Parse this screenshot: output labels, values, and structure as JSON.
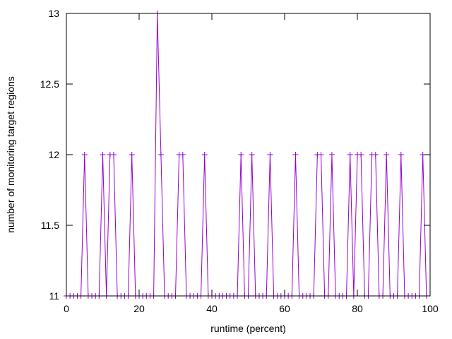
{
  "chart_data": {
    "type": "line",
    "title": "",
    "xlabel": "runtime (percent)",
    "ylabel": "number of monitoring target regions",
    "xlim": [
      0,
      100
    ],
    "ylim": [
      11,
      13
    ],
    "xticks": [
      0,
      20,
      40,
      60,
      80,
      100
    ],
    "yticks": [
      11,
      11.5,
      12,
      12.5,
      13
    ],
    "xtick_labels": [
      "0",
      "20",
      "40",
      "60",
      "80",
      "100"
    ],
    "ytick_labels": [
      "11",
      "11.5",
      "12",
      "12.5",
      "13"
    ],
    "grid": false,
    "legend": "none",
    "marker": "plus",
    "series": [
      {
        "color": "#9400d3",
        "x": [
          0,
          1,
          2,
          3,
          4,
          5,
          6,
          7,
          8,
          9,
          10,
          11,
          12,
          13,
          14,
          15,
          16,
          17,
          18,
          19,
          20,
          21,
          22,
          23,
          24,
          25,
          26,
          27,
          28,
          29,
          30,
          31,
          32,
          33,
          34,
          35,
          36,
          37,
          38,
          39,
          40,
          41,
          42,
          43,
          44,
          45,
          46,
          47,
          48,
          49,
          50,
          51,
          52,
          53,
          54,
          55,
          56,
          57,
          58,
          59,
          60,
          61,
          62,
          63,
          64,
          65,
          66,
          67,
          68,
          69,
          70,
          71,
          72,
          73,
          74,
          75,
          76,
          77,
          78,
          79,
          80,
          81,
          82,
          83,
          84,
          85,
          86,
          87,
          88,
          89,
          90,
          91,
          92,
          93,
          94,
          95,
          96,
          97,
          98,
          99
        ],
        "y": [
          11,
          11,
          11,
          11,
          11,
          12,
          11,
          11,
          11,
          11,
          12,
          11,
          12,
          12,
          11,
          11,
          11,
          11,
          12,
          11,
          11,
          11,
          11,
          11,
          11,
          13,
          12,
          11,
          11,
          11,
          11,
          12,
          12,
          11,
          11,
          11,
          11,
          11,
          12,
          11,
          11,
          11,
          11,
          11,
          11,
          11,
          11,
          11,
          12,
          11,
          11,
          12,
          11,
          11,
          11,
          11,
          12,
          11,
          11,
          11,
          11,
          11,
          11,
          12,
          11,
          11,
          11,
          11,
          11,
          12,
          12,
          11,
          11,
          12,
          11,
          11,
          11,
          11,
          12,
          11,
          12,
          12,
          11,
          11,
          12,
          12,
          11,
          11,
          12,
          11,
          11,
          11,
          12,
          11,
          11,
          11,
          11,
          11,
          12,
          11
        ]
      }
    ]
  }
}
